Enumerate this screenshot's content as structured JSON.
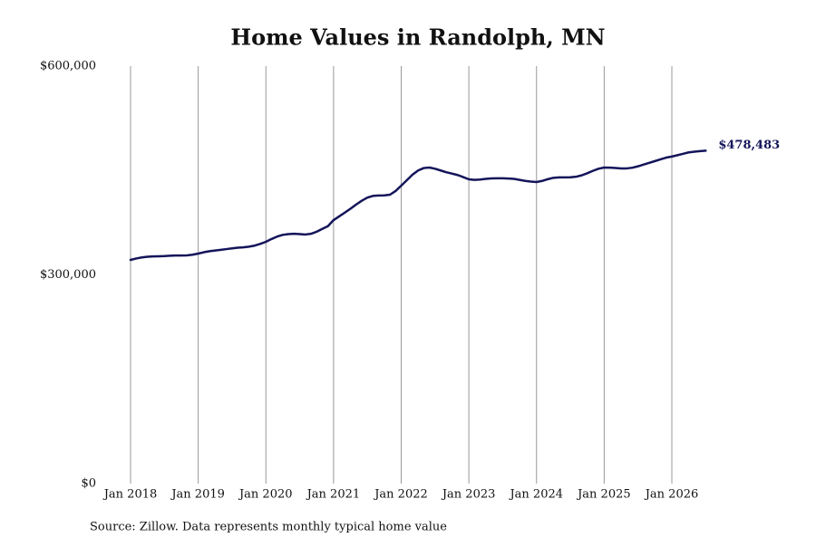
{
  "chart_data": {
    "type": "line",
    "title": "Home Values in Randolph, MN",
    "source": "Source: Zillow. Data represents monthly typical home value",
    "x": [
      "2018-01",
      "2018-02",
      "2018-03",
      "2018-04",
      "2018-05",
      "2018-06",
      "2018-07",
      "2018-08",
      "2018-09",
      "2018-10",
      "2018-11",
      "2018-12",
      "2019-01",
      "2019-02",
      "2019-03",
      "2019-04",
      "2019-05",
      "2019-06",
      "2019-07",
      "2019-08",
      "2019-09",
      "2019-10",
      "2019-11",
      "2019-12",
      "2020-01",
      "2020-02",
      "2020-03",
      "2020-04",
      "2020-05",
      "2020-06",
      "2020-07",
      "2020-08",
      "2020-09",
      "2020-10",
      "2020-11",
      "2020-12",
      "2021-01",
      "2021-02",
      "2021-03",
      "2021-04",
      "2021-05",
      "2021-06",
      "2021-07",
      "2021-08",
      "2021-09",
      "2021-10",
      "2021-11",
      "2021-12",
      "2022-01",
      "2022-02",
      "2022-03",
      "2022-04",
      "2022-05",
      "2022-06",
      "2022-07",
      "2022-08",
      "2022-09",
      "2022-10",
      "2022-11",
      "2022-12",
      "2023-01",
      "2023-02",
      "2023-03",
      "2023-04",
      "2023-05",
      "2023-06",
      "2023-07",
      "2023-08",
      "2023-09",
      "2023-10",
      "2023-11",
      "2023-12",
      "2024-01",
      "2024-02",
      "2024-03",
      "2024-04",
      "2024-05",
      "2024-06",
      "2024-07",
      "2024-08",
      "2024-09",
      "2024-10",
      "2024-11",
      "2024-12",
      "2025-01",
      "2025-02",
      "2025-03",
      "2025-04",
      "2025-05",
      "2025-06",
      "2025-07",
      "2025-08",
      "2025-09",
      "2025-10",
      "2025-11",
      "2025-12",
      "2026-01",
      "2026-02",
      "2026-03",
      "2026-04",
      "2026-05",
      "2026-06",
      "2026-07"
    ],
    "series": [
      {
        "name": "Typical home value",
        "color": "#14145a",
        "values": [
          321500,
          323500,
          325000,
          326000,
          326500,
          326700,
          327000,
          327500,
          327800,
          327800,
          328000,
          329000,
          330600,
          332500,
          334000,
          335000,
          336000,
          337000,
          338000,
          339000,
          339500,
          340500,
          342000,
          344500,
          347500,
          351500,
          355000,
          357500,
          358500,
          359000,
          358500,
          358000,
          359000,
          362000,
          366000,
          370000,
          378700,
          384000,
          389500,
          395000,
          401000,
          406500,
          411000,
          413500,
          414000,
          414200,
          415200,
          420500,
          428200,
          436000,
          444000,
          450000,
          453500,
          454200,
          452500,
          450000,
          447500,
          445500,
          443500,
          440500,
          437300,
          436500,
          437000,
          438000,
          438600,
          438800,
          438700,
          438500,
          438000,
          436500,
          435000,
          434000,
          433400,
          435000,
          437500,
          439500,
          440000,
          440000,
          440200,
          441000,
          443000,
          446000,
          449500,
          452500,
          454200,
          454000,
          453500,
          453000,
          453000,
          454000,
          456000,
          458500,
          461000,
          463500,
          466000,
          468500,
          470000,
          472000,
          474000,
          476000,
          477000,
          477800,
          478483
        ],
        "value_labels": [
          null,
          null,
          null,
          null,
          null,
          null,
          null,
          null,
          null,
          null,
          null,
          null,
          null,
          null,
          null,
          null,
          null,
          null,
          null,
          null,
          null,
          null,
          null,
          null,
          null,
          null,
          null,
          null,
          null,
          null,
          null,
          null,
          null,
          null,
          null,
          null,
          null,
          null,
          null,
          null,
          null,
          null,
          null,
          null,
          null,
          null,
          null,
          null,
          null,
          null,
          null,
          null,
          null,
          null,
          null,
          null,
          null,
          null,
          null,
          null,
          null,
          null,
          null,
          null,
          null,
          null,
          null,
          null,
          null,
          null,
          null,
          null,
          null,
          null,
          null,
          null,
          null,
          null,
          null,
          null,
          null,
          null,
          null,
          null,
          null,
          null,
          null,
          null,
          null,
          null,
          null,
          null,
          null,
          null,
          null,
          null,
          null,
          null,
          null,
          null,
          null,
          null,
          "$478,483"
        ]
      }
    ],
    "ylim": [
      0,
      600000
    ],
    "yticks": [
      {
        "value": 0,
        "label": "$0"
      },
      {
        "value": 300000,
        "label": "$300,000"
      },
      {
        "value": 600000,
        "label": "$600,000"
      }
    ],
    "xticks": [
      {
        "value": "2018-01",
        "label": "Jan 2018"
      },
      {
        "value": "2019-01",
        "label": "Jan 2019"
      },
      {
        "value": "2020-01",
        "label": "Jan 2020"
      },
      {
        "value": "2021-01",
        "label": "Jan 2021"
      },
      {
        "value": "2022-01",
        "label": "Jan 2022"
      },
      {
        "value": "2023-01",
        "label": "Jan 2023"
      },
      {
        "value": "2024-01",
        "label": "Jan 2024"
      },
      {
        "value": "2025-01",
        "label": "Jan 2025"
      },
      {
        "value": "2026-01",
        "label": "Jan 2026"
      }
    ],
    "grid": "x"
  }
}
